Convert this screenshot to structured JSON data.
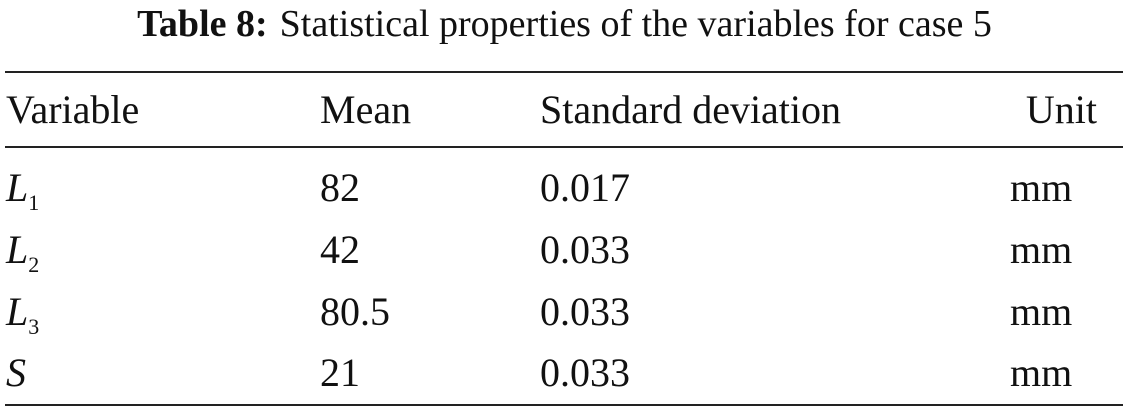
{
  "table": {
    "label": "Table 8:",
    "title": "Statistical properties of the variables for case 5",
    "header": [
      "Variable",
      "Mean",
      "Standard deviation",
      "Unit"
    ],
    "rows": [
      [
        {
          "symbol": "L",
          "subscript": "1"
        },
        "82",
        "0.017",
        "mm"
      ],
      [
        {
          "symbol": "L",
          "subscript": "2"
        },
        "42",
        "0.033",
        "mm"
      ],
      [
        {
          "symbol": "L",
          "subscript": "3"
        },
        "80.5",
        "0.033",
        "mm"
      ],
      [
        {
          "symbol": "S"
        },
        "21",
        "0.033",
        "mm"
      ]
    ]
  }
}
